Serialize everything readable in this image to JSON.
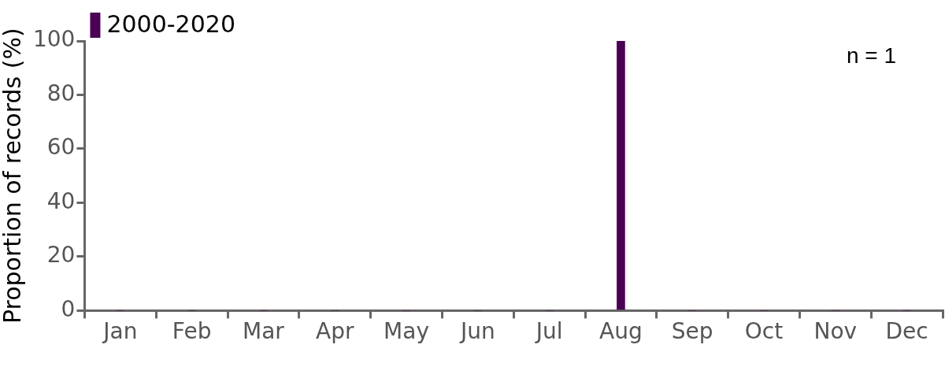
{
  "chart_data": {
    "type": "bar",
    "categories": [
      "Jan",
      "Feb",
      "Mar",
      "Apr",
      "May",
      "Jun",
      "Jul",
      "Aug",
      "Sep",
      "Oct",
      "Nov",
      "Dec"
    ],
    "series": [
      {
        "name": "2000-2020",
        "color": "#4b0055",
        "values": [
          0,
          0,
          0,
          0,
          0,
          0,
          0,
          100,
          0,
          0,
          0,
          0
        ]
      }
    ],
    "ylabel": "Proportion of records (%)",
    "ylim": [
      0,
      100
    ],
    "yticks": [
      0,
      20,
      40,
      60,
      80,
      100
    ],
    "legend": "top left",
    "annotations": [
      "n = 1"
    ]
  }
}
